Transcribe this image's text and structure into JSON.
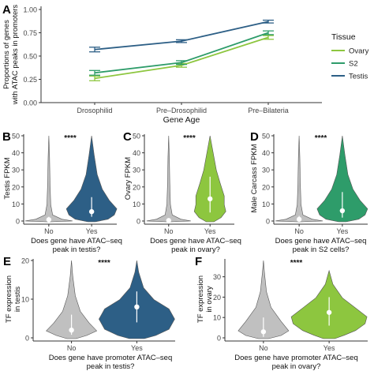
{
  "chart_data": [
    {
      "panel": "A",
      "type": "line",
      "xlabel": "Gene Age",
      "ylabel": "Proportions of genes\nwith ATAC peaks in promoters",
      "categories": [
        "Drosophilid",
        "Pre–Drosophilid",
        "Pre–Bilateria"
      ],
      "ylim": [
        0,
        1.0
      ],
      "yticks": [
        "0.00",
        "0.25",
        "0.50",
        "0.75",
        "1.00"
      ],
      "legend_title": "Tissue",
      "legend_position": "right",
      "series": [
        {
          "name": "Ovary",
          "color": "#8dc63f",
          "values": [
            0.26,
            0.4,
            0.7
          ],
          "err": [
            0.025,
            0.02,
            0.02
          ]
        },
        {
          "name": "S2",
          "color": "#2e9c6a",
          "values": [
            0.32,
            0.43,
            0.75
          ],
          "err": [
            0.025,
            0.02,
            0.02
          ]
        },
        {
          "name": "Testis",
          "color": "#2d5f86",
          "values": [
            0.57,
            0.66,
            0.87
          ],
          "err": [
            0.025,
            0.015,
            0.015
          ]
        }
      ]
    },
    {
      "panel": "B",
      "type": "violin",
      "ylabel": "Testis FPKM",
      "xlabel": "Does gene have ATAC–seq\npeak in testis?",
      "categories": [
        "No",
        "Yes"
      ],
      "ylim": [
        0,
        50
      ],
      "yticks": [
        "0",
        "10",
        "20",
        "30",
        "40",
        "50"
      ],
      "significance": "****",
      "colors": [
        "#c0c0c0",
        "#2d5f86"
      ],
      "medians": [
        0.8,
        5.5
      ],
      "iqr_low": [
        0.2,
        2.5
      ],
      "iqr_high": [
        2.5,
        14
      ]
    },
    {
      "panel": "C",
      "type": "violin",
      "ylabel": "Ovary FPKM",
      "xlabel": "Does gene have ATAC–seq\npeak in ovary?",
      "categories": [
        "No",
        "Yes"
      ],
      "ylim": [
        0,
        50
      ],
      "yticks": [
        "0",
        "10",
        "20",
        "30",
        "40",
        "50"
      ],
      "significance": "****",
      "colors": [
        "#c0c0c0",
        "#8dc63f"
      ],
      "medians": [
        0.3,
        13
      ],
      "iqr_low": [
        0.1,
        5
      ],
      "iqr_high": [
        1,
        26
      ]
    },
    {
      "panel": "D",
      "type": "violin",
      "ylabel": "Male Carcass FPKM",
      "xlabel": "Does gene have ATAC–seq\npeak in S2 cells?",
      "categories": [
        "No",
        "Yes"
      ],
      "ylim": [
        0,
        50
      ],
      "yticks": [
        "0",
        "10",
        "20",
        "30",
        "40",
        "50"
      ],
      "significance": "****",
      "colors": [
        "#c0c0c0",
        "#2e9c6a"
      ],
      "medians": [
        1,
        6
      ],
      "iqr_low": [
        0.2,
        2
      ],
      "iqr_high": [
        3,
        17
      ]
    },
    {
      "panel": "E",
      "type": "violin",
      "ylabel": "TF expression\nin testis",
      "xlabel": "Does gene have promoter ATAC–seq\npeak in testis?",
      "categories": [
        "No",
        "Yes"
      ],
      "ylim": [
        0,
        20
      ],
      "yticks": [
        "0",
        "10",
        "20"
      ],
      "significance": "****",
      "colors": [
        "#c0c0c0",
        "#2d5f86"
      ],
      "medians": [
        2,
        8
      ],
      "iqr_low": [
        0.8,
        4
      ],
      "iqr_high": [
        6,
        12
      ]
    },
    {
      "panel": "F",
      "type": "violin",
      "ylabel": "TF expression\nin ovary",
      "xlabel": "Does gene have promoter ATAC–seq\npeak in ovary?",
      "categories": [
        "No",
        "Yes"
      ],
      "ylim": [
        0,
        38
      ],
      "yticks": [
        "0",
        "10",
        "20",
        "30"
      ],
      "significance": "****",
      "colors": [
        "#c0c0c0",
        "#8dc63f"
      ],
      "medians": [
        3,
        12.5
      ],
      "iqr_low": [
        0.5,
        6
      ],
      "iqr_high": [
        10,
        20
      ]
    }
  ]
}
